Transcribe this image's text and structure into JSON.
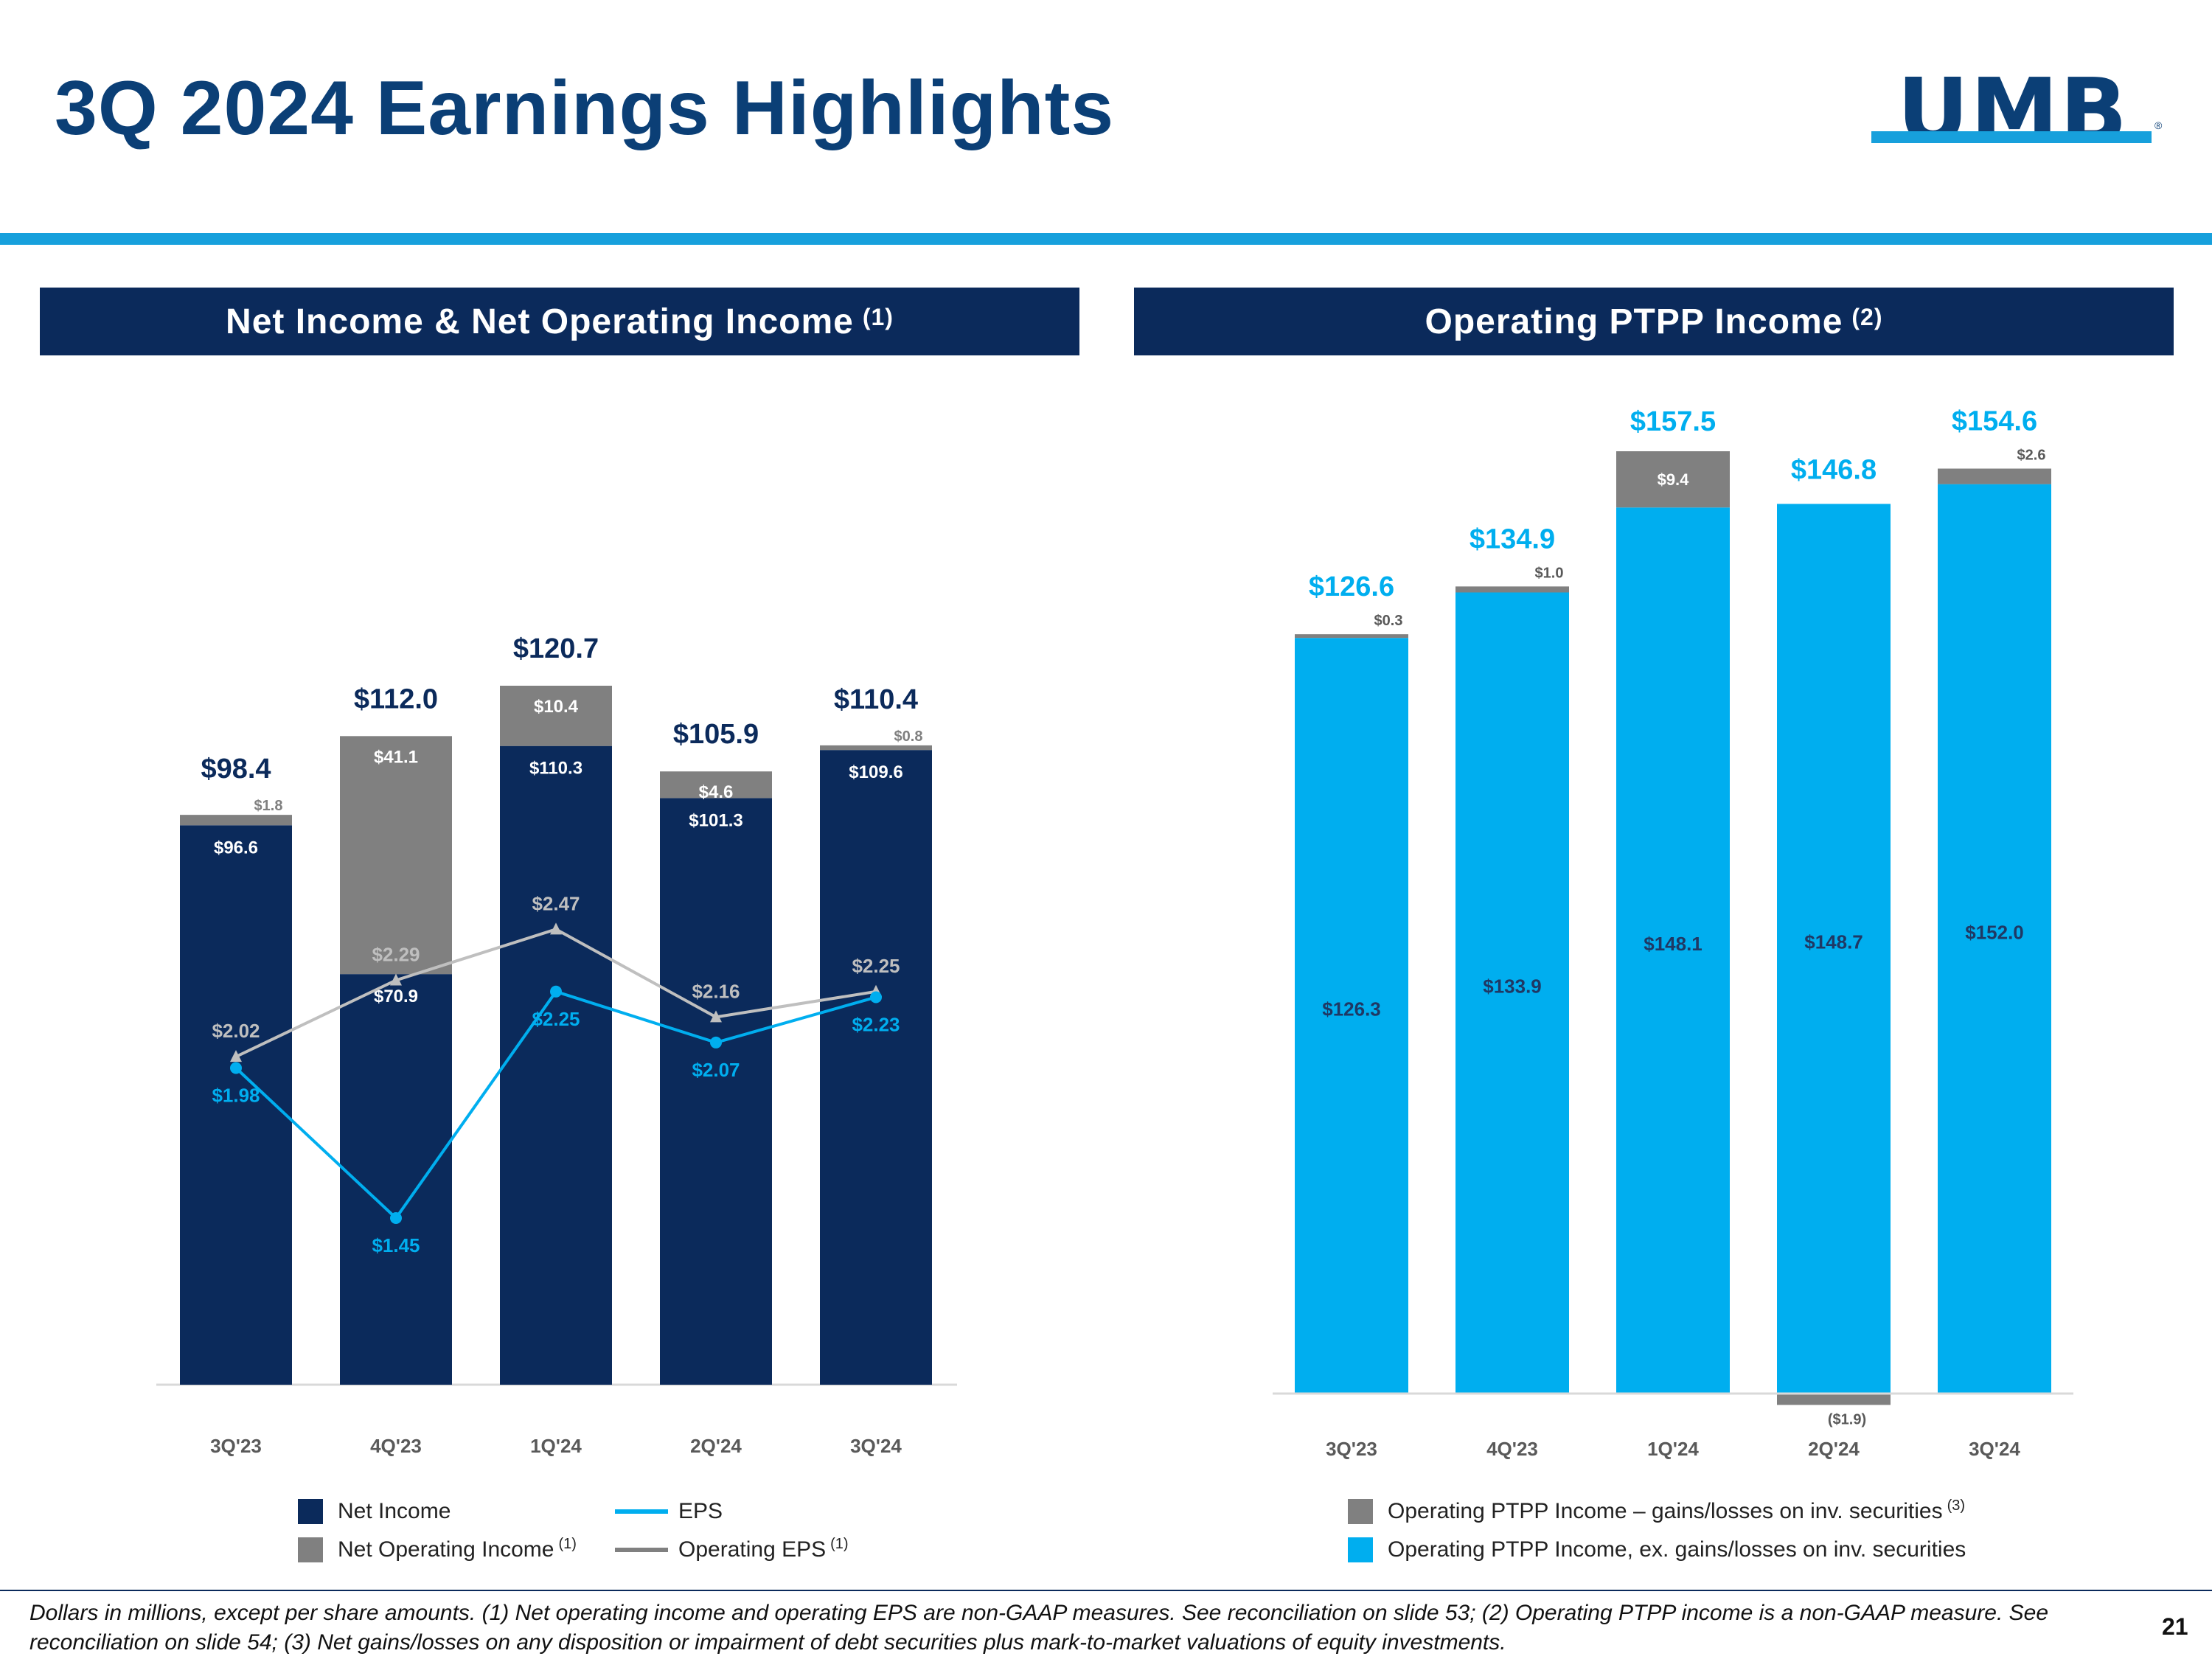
{
  "title": "3Q 2024 Earnings Highlights",
  "logo": {
    "text": "UMB",
    "reg": "®"
  },
  "colors": {
    "navy": "#0b2a5b",
    "title_blue": "#0b3f76",
    "accent_blue": "#17a0dc",
    "bar_cyan": "#00aeef",
    "gray": "#808080",
    "light_gray_line": "#bfbfbf"
  },
  "panels": {
    "left": {
      "title": "Net Income & Net Operating Income",
      "sup": "(1)"
    },
    "right": {
      "title": "Operating PTPP Income",
      "sup": "(2)"
    }
  },
  "chart_data": [
    {
      "type": "bar",
      "stacked": true,
      "title": "Net Income & Net Operating Income (1)",
      "categories": [
        "3Q'23",
        "4Q'23",
        "1Q'24",
        "2Q'24",
        "3Q'24"
      ],
      "series": [
        {
          "name": "Net Income",
          "values": [
            96.6,
            70.9,
            110.3,
            101.3,
            109.6
          ],
          "labels": [
            "$96.6",
            "$70.9",
            "$110.3",
            "$101.3",
            "$109.6"
          ]
        },
        {
          "name": "Net Operating Income",
          "values": [
            1.8,
            41.1,
            10.4,
            4.6,
            0.8
          ],
          "labels": [
            "$1.8",
            "$41.1",
            "$10.4",
            "$4.6",
            "$0.8"
          ]
        }
      ],
      "totals": [
        98.4,
        112.0,
        120.7,
        105.9,
        110.4
      ],
      "total_labels": [
        "$98.4",
        "$112.0",
        "$120.7",
        "$105.9",
        "$110.4"
      ],
      "ylim": [
        0,
        120.7
      ],
      "lines": [
        {
          "name": "EPS",
          "values": [
            1.98,
            1.45,
            2.25,
            2.07,
            2.23
          ],
          "labels": [
            "$1.98",
            "$1.45",
            "$2.25",
            "$2.07",
            "$2.23"
          ]
        },
        {
          "name": "Operating EPS",
          "values": [
            2.02,
            2.29,
            2.47,
            2.16,
            2.25
          ],
          "labels": [
            "$2.02",
            "$2.29",
            "$2.47",
            "$2.16",
            "$2.25"
          ]
        }
      ],
      "legend": [
        {
          "label": "Net Income",
          "sup": ""
        },
        {
          "label": "Net Operating Income",
          "sup": "(1)"
        },
        {
          "label": "EPS",
          "sup": ""
        },
        {
          "label": "Operating EPS",
          "sup": "(1)"
        }
      ]
    },
    {
      "type": "bar",
      "stacked": true,
      "title": "Operating PTPP Income (2)",
      "categories": [
        "3Q'23",
        "4Q'23",
        "1Q'24",
        "2Q'24",
        "3Q'24"
      ],
      "series": [
        {
          "name": "Operating PTPP Income, ex. gains/losses on inv. securities",
          "values": [
            126.3,
            133.9,
            148.1,
            148.7,
            152.0
          ],
          "labels": [
            "$126.3",
            "$133.9",
            "$148.1",
            "$148.7",
            "$152.0"
          ]
        },
        {
          "name": "Operating PTPP Income – gains/losses on inv. securities",
          "values": [
            0.3,
            1.0,
            9.4,
            -1.9,
            2.6
          ],
          "labels": [
            "$0.3",
            "$1.0",
            "$9.4",
            "($1.9)",
            "$2.6"
          ]
        }
      ],
      "totals": [
        126.6,
        134.9,
        157.5,
        146.8,
        154.6
      ],
      "total_labels": [
        "$126.6",
        "$134.9",
        "$157.5",
        "$146.8",
        "$154.6"
      ],
      "ylim": [
        -1.9,
        157.5
      ],
      "legend": [
        {
          "label": "Operating PTPP Income – gains/losses on inv. securities",
          "sup": "(3)"
        },
        {
          "label": "Operating PTPP Income, ex. gains/losses on inv. securities",
          "sup": ""
        }
      ]
    }
  ],
  "footnote": "Dollars in millions, except per share amounts. (1) Net operating income and operating EPS are non-GAAP measures. See reconciliation on slide 53; (2) Operating PTPP income is a non-GAAP measure. See reconciliation on slide 54; (3) Net gains/losses on any disposition or impairment of debt securities plus mark-to-market valuations of equity investments.",
  "page_number": "21"
}
